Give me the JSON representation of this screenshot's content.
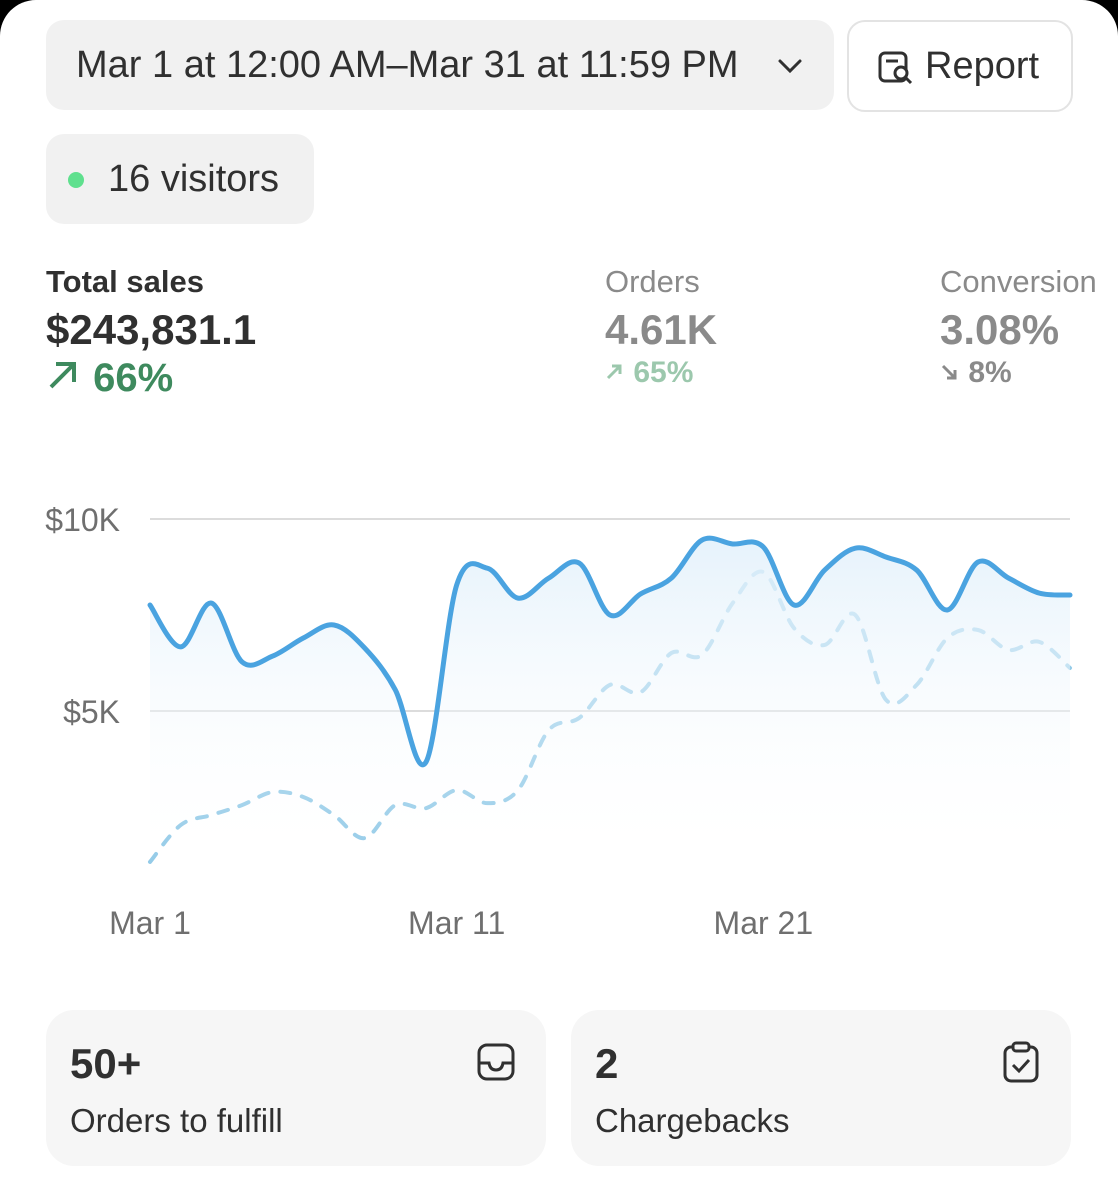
{
  "header": {
    "date_range": "Mar 1 at 12:00 AM–Mar 31 at 11:59 PM",
    "report_button": "Report",
    "visitors": "16 visitors"
  },
  "metrics": [
    {
      "label": "Total sales",
      "value": "$243,831.1",
      "change": "66%"
    },
    {
      "label": "Orders",
      "value": "4.61K",
      "change": "65%"
    },
    {
      "label": "Conversion",
      "value": "3.08%",
      "change": "8%"
    }
  ],
  "chart_data": {
    "type": "line",
    "categories": [
      "Mar 1",
      null,
      null,
      null,
      null,
      null,
      null,
      null,
      null,
      null,
      "Mar 11",
      null,
      null,
      null,
      null,
      null,
      null,
      null,
      null,
      null,
      "Mar 21",
      null,
      null,
      null,
      null,
      null,
      null,
      null,
      null,
      null,
      null
    ],
    "series": [
      {
        "color": "#4aa3e0",
        "values": [
          7760,
          6670,
          7810,
          6280,
          6430,
          6900,
          7240,
          6640,
          5550,
          3670,
          8280,
          8720,
          7940,
          8460,
          8850,
          7500,
          8050,
          8460,
          9450,
          9350,
          9270,
          7760,
          8670,
          9240,
          9010,
          8670,
          7630,
          8880,
          8460,
          8070,
          8020
        ]
      },
      {
        "color": "#94cbe8",
        "dashed": true,
        "values": [
          1070,
          2030,
          2290,
          2550,
          2890,
          2760,
          2290,
          1690,
          2550,
          2470,
          2940,
          2600,
          2940,
          4500,
          4820,
          5680,
          5490,
          6510,
          6460,
          7810,
          8620,
          7160,
          6720,
          7500,
          5290,
          5680,
          6900,
          7110,
          6590,
          6800,
          6120
        ]
      }
    ],
    "ylim": [
      1000,
      10000
    ],
    "yticks": [
      {
        "value": 5000,
        "label": "$5K"
      },
      {
        "value": 10000,
        "label": "$10K"
      }
    ],
    "grid": true
  },
  "cards": [
    {
      "value": "50+",
      "label": "Orders to fulfill"
    },
    {
      "value": "2",
      "label": "Chargebacks"
    }
  ]
}
